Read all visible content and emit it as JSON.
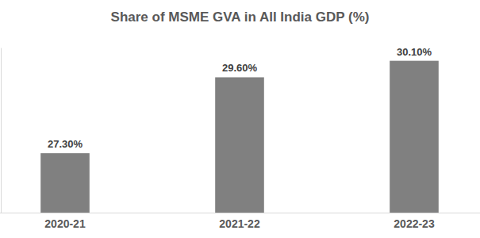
{
  "chart_data": {
    "type": "bar",
    "title": "Share of MSME GVA in All India GDP (%)",
    "categories": [
      "2020-21",
      "2021-22",
      "2022-23"
    ],
    "values": [
      27.3,
      29.6,
      30.1
    ],
    "value_labels": [
      "27.30%",
      "29.60%",
      "30.10%"
    ],
    "color": "#808080",
    "ylim": [
      25.5,
      30.5
    ],
    "grid": false,
    "data_labels": true,
    "tick_labels": "x"
  }
}
